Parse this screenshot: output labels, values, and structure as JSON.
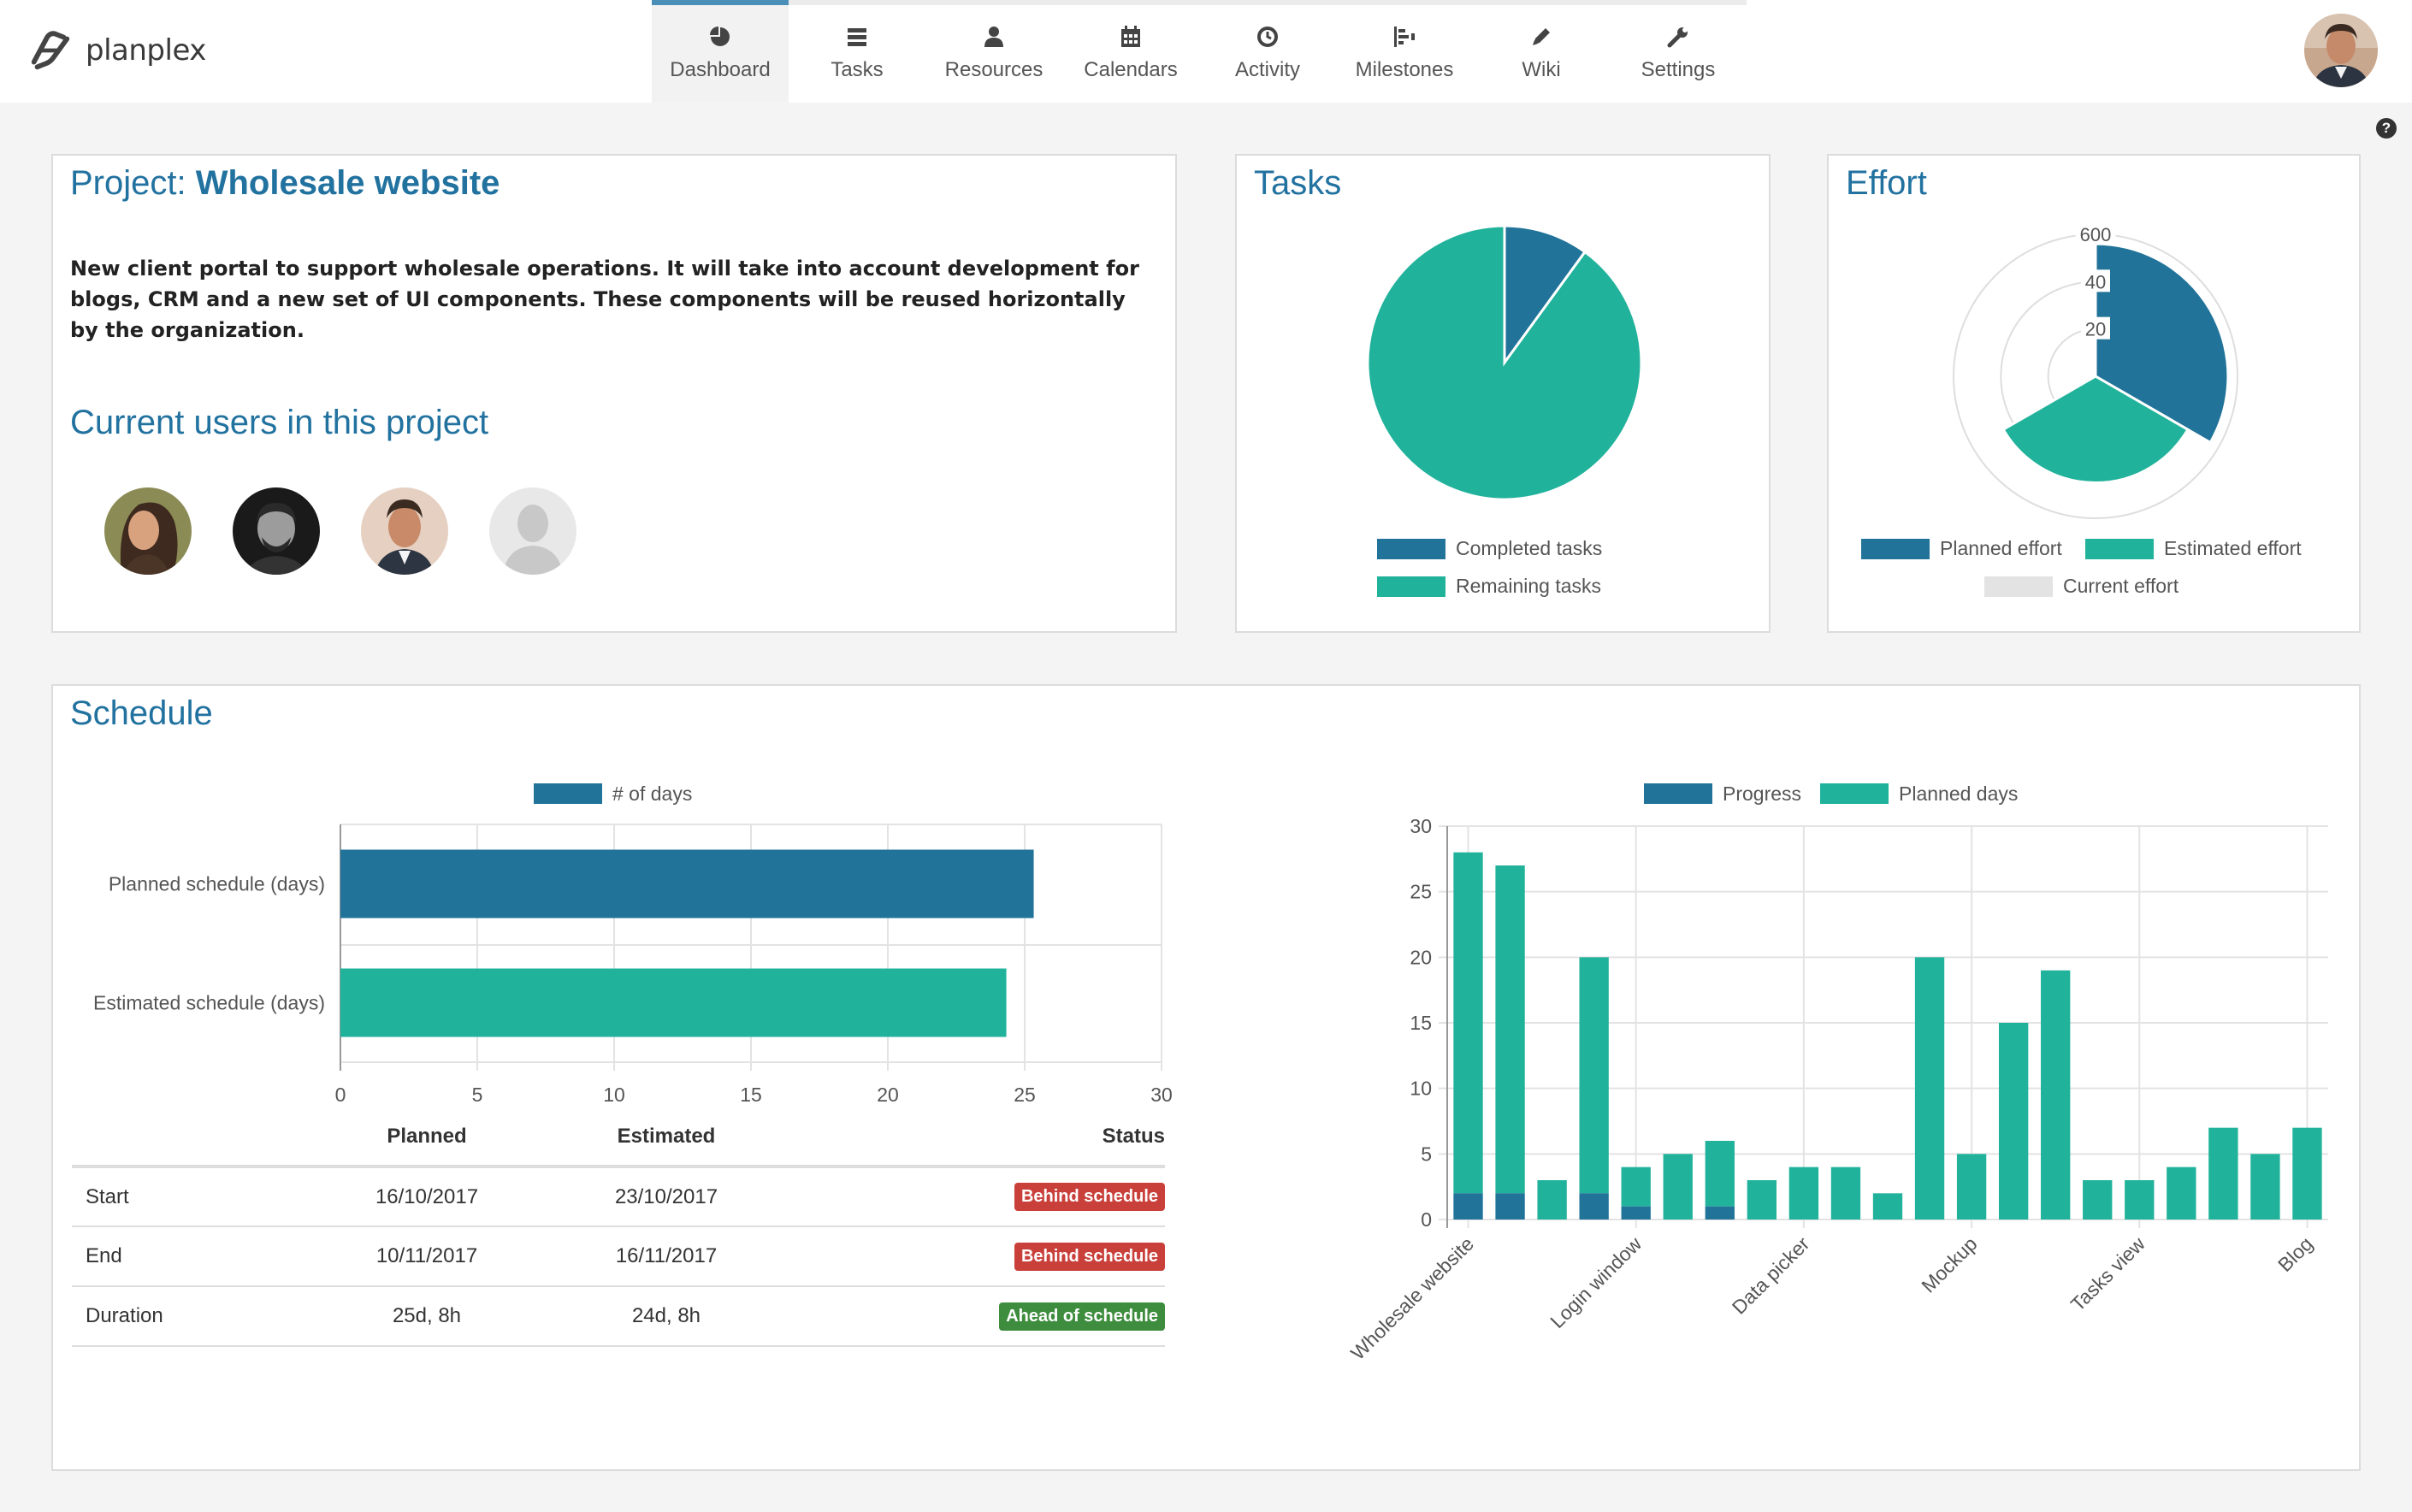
{
  "app": {
    "name": "planplex"
  },
  "nav": {
    "items": [
      {
        "label": "Dashboard",
        "icon": "dashboard-icon",
        "active": true
      },
      {
        "label": "Tasks",
        "icon": "tasks-icon"
      },
      {
        "label": "Resources",
        "icon": "resources-icon"
      },
      {
        "label": "Calendars",
        "icon": "calendar-icon"
      },
      {
        "label": "Activity",
        "icon": "clock-icon"
      },
      {
        "label": "Milestones",
        "icon": "milestones-icon"
      },
      {
        "label": "Wiki",
        "icon": "pencil-icon"
      },
      {
        "label": "Settings",
        "icon": "wrench-icon"
      }
    ]
  },
  "help": {
    "label": "?"
  },
  "project": {
    "prefix": "Project: ",
    "name": "Wholesale website",
    "description": "New client portal to support wholesale operations. It will take into account development for blogs, CRM and a new set of UI components. These components will be reused horizontally by the organization.",
    "users_title": "Current users in this project"
  },
  "tasks_panel": {
    "title": "Tasks",
    "legend": [
      "Completed tasks",
      "Remaining tasks"
    ]
  },
  "effort_panel": {
    "title": "Effort",
    "legend": [
      "Planned effort",
      "Estimated effort",
      "Current effort"
    ]
  },
  "schedule": {
    "title": "Schedule",
    "table": {
      "headers": [
        "",
        "Planned",
        "Estimated",
        "Status"
      ],
      "rows": [
        {
          "label": "Start",
          "planned": "16/10/2017",
          "estimated": "23/10/2017",
          "status": "Behind schedule"
        },
        {
          "label": "End",
          "planned": "10/11/2017",
          "estimated": "16/11/2017",
          "status": "Behind schedule"
        },
        {
          "label": "Duration",
          "planned": "25d, 8h",
          "estimated": "24d, 8h",
          "status": "Ahead of schedule"
        }
      ]
    }
  },
  "colors": {
    "primary_blue": "#217399",
    "teal": "#21b29b",
    "grey": "#e3e3e3",
    "behind": "#c9403b",
    "ahead": "#3e8d3e",
    "heading": "#2272a0"
  },
  "chart_data": [
    {
      "type": "pie",
      "labels": [
        "Completed tasks",
        "Remaining tasks"
      ],
      "values": [
        10,
        90
      ]
    },
    {
      "type": "pie",
      "subtype": "polar-area",
      "labels": [
        "Planned effort",
        "Estimated effort",
        "Current effort"
      ],
      "values": [
        560,
        450,
        0
      ],
      "rlim": [
        0,
        600
      ],
      "ticks": [
        "600",
        "40",
        "20"
      ]
    },
    {
      "type": "bar",
      "orientation": "horizontal",
      "categories": [
        "Planned schedule (days)",
        "Estimated schedule (days)"
      ],
      "series": [
        {
          "name": "# of days",
          "values": [
            25.33,
            24.33
          ]
        }
      ],
      "xlim": [
        0,
        30
      ],
      "xticks": [
        "0",
        "5",
        "10",
        "15",
        "20",
        "25",
        "30"
      ]
    },
    {
      "type": "bar",
      "stacked": true,
      "categories": [
        "Wholesale website",
        "",
        "",
        "",
        "Login window",
        "",
        "",
        "",
        "Data picker",
        "",
        "",
        "",
        "Mockup",
        "",
        "",
        "",
        "Tasks view",
        "",
        "",
        "",
        "Blog"
      ],
      "series": [
        {
          "name": "Progress",
          "values": [
            2,
            2,
            0,
            2,
            1,
            0,
            1,
            0,
            0,
            0,
            0,
            0,
            0,
            0,
            0,
            0,
            0,
            0,
            0,
            0,
            0
          ]
        },
        {
          "name": "Planned days",
          "values": [
            28,
            27,
            3,
            20,
            4,
            5,
            6,
            3,
            4,
            4,
            2,
            20,
            5,
            15,
            19,
            3,
            3,
            4,
            7,
            5,
            7
          ]
        }
      ],
      "ylim": [
        0,
        30
      ],
      "yticks": [
        "0",
        "5",
        "10",
        "15",
        "20",
        "25",
        "30"
      ],
      "xtick_labels": [
        "Wholesale website",
        "Login window",
        "Data picker",
        "Mockup",
        "Tasks view",
        "Blog"
      ]
    }
  ]
}
